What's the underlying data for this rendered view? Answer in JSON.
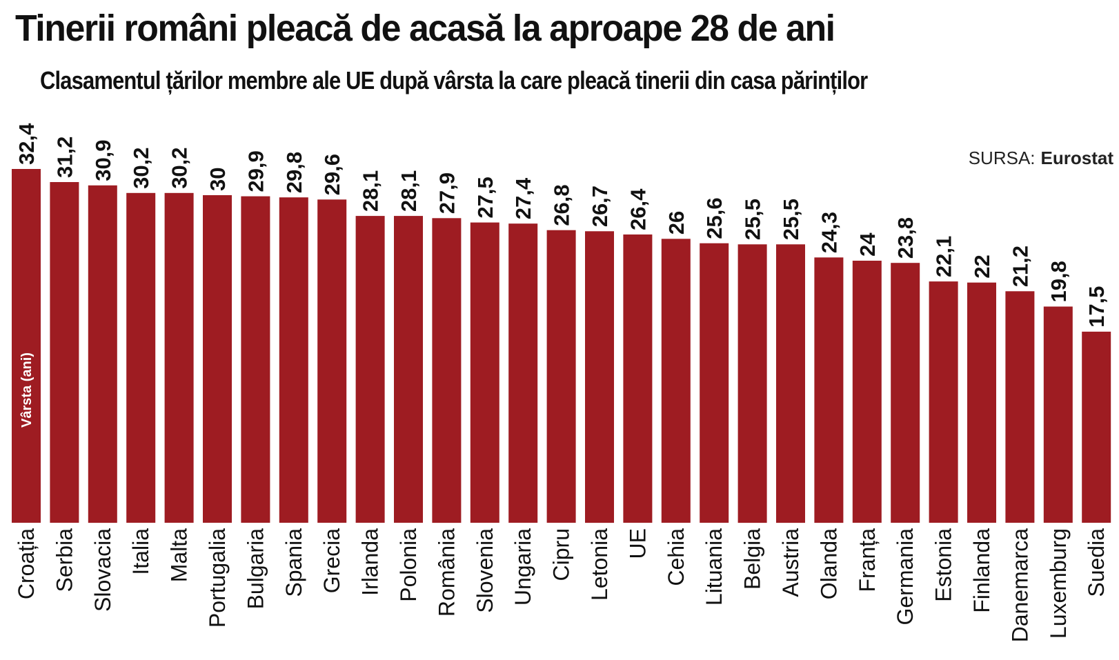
{
  "header": {
    "title": "Tinerii români pleacă de acasă la aproape 28 de ani",
    "subtitle": "Clasamentul țărilor membre ale UE după vârsta la care pleacă tinerii din casa părinților"
  },
  "source": {
    "label": "SURSA:",
    "value": "Eurostat"
  },
  "colors": {
    "bar": "#9e1c22",
    "text": "#111111",
    "background": "#ffffff"
  },
  "chart_data": {
    "type": "bar",
    "title": "Tinerii români pleacă de acasă la aproape 28 de ani",
    "subtitle": "Clasamentul țărilor membre ale UE după vârsta la care pleacă tinerii din casa părinților",
    "xlabel": "",
    "ylabel": "Vârsta (ani)",
    "ylim": [
      0,
      32.4
    ],
    "grid": false,
    "legend": "none",
    "categories": [
      "Croația",
      "Serbia",
      "Slovacia",
      "Italia",
      "Malta",
      "Portugalia",
      "Bulgaria",
      "Spania",
      "Grecia",
      "Irlanda",
      "Polonia",
      "România",
      "Slovenia",
      "Ungaria",
      "Cipru",
      "Letonia",
      "UE",
      "Cehia",
      "Lituania",
      "Belgia",
      "Austria",
      "Olanda",
      "Franța",
      "Germania",
      "Estonia",
      "Finlanda",
      "Danemarca",
      "Luxemburg",
      "Suedia"
    ],
    "values": [
      32.4,
      31.2,
      30.9,
      30.2,
      30.2,
      30,
      29.9,
      29.8,
      29.6,
      28.1,
      28.1,
      27.9,
      27.5,
      27.4,
      26.8,
      26.7,
      26.4,
      26,
      25.6,
      25.5,
      25.5,
      24.3,
      24,
      23.8,
      22.1,
      22,
      21.2,
      19.8,
      17.5
    ],
    "value_labels": [
      "32,4",
      "31,2",
      "30,9",
      "30,2",
      "30,2",
      "30",
      "29,9",
      "29,8",
      "29,6",
      "28,1",
      "28,1",
      "27,9",
      "27,5",
      "27,4",
      "26,8",
      "26,7",
      "26,4",
      "26",
      "25,6",
      "25,5",
      "25,5",
      "24,3",
      "24",
      "23,8",
      "22,1",
      "22",
      "21,2",
      "19,8",
      "17,5"
    ]
  }
}
